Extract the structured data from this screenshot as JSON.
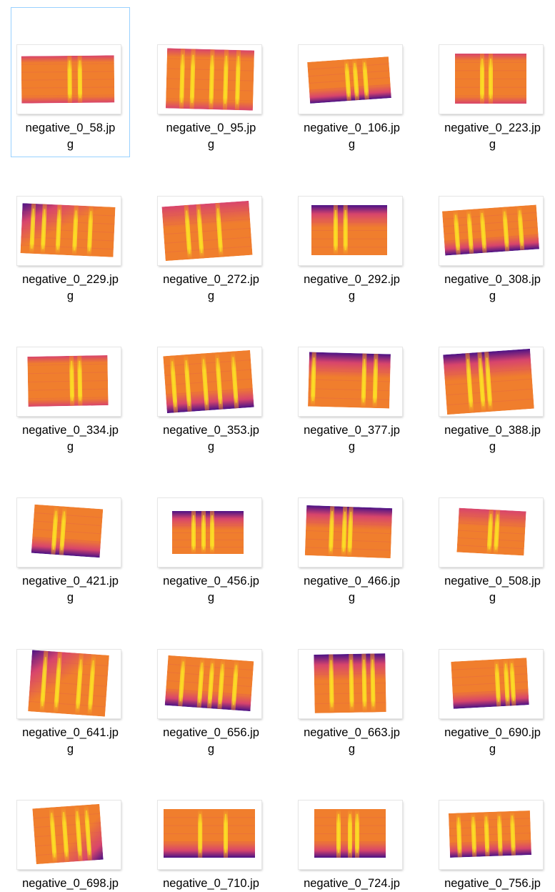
{
  "window": {
    "view": "Large icons"
  },
  "colors": {
    "selection_border": "#99d1ff",
    "colormap_dark": "#4a1286",
    "colormap_mid": "#d8456c",
    "colormap_orange": "#f07e2d",
    "colormap_bright": "#fde724"
  },
  "files": [
    {
      "name": "negative_0_58.jp",
      "name_wrap": "g",
      "selected": true,
      "icon": "spectrogram-thumbnail-icon"
    },
    {
      "name": "negative_0_95.jp",
      "name_wrap": "g",
      "selected": false,
      "icon": "spectrogram-thumbnail-icon"
    },
    {
      "name": "negative_0_106.jp",
      "name_wrap": "g",
      "selected": false,
      "icon": "spectrogram-thumbnail-icon"
    },
    {
      "name": "negative_0_223.jp",
      "name_wrap": "g",
      "selected": false,
      "icon": "spectrogram-thumbnail-icon"
    },
    {
      "name": "negative_0_229.jp",
      "name_wrap": "g",
      "selected": false,
      "icon": "spectrogram-thumbnail-icon"
    },
    {
      "name": "negative_0_272.jp",
      "name_wrap": "g",
      "selected": false,
      "icon": "spectrogram-thumbnail-icon"
    },
    {
      "name": "negative_0_292.jp",
      "name_wrap": "g",
      "selected": false,
      "icon": "spectrogram-thumbnail-icon"
    },
    {
      "name": "negative_0_308.jp",
      "name_wrap": "g",
      "selected": false,
      "icon": "spectrogram-thumbnail-icon"
    },
    {
      "name": "negative_0_334.jp",
      "name_wrap": "g",
      "selected": false,
      "icon": "spectrogram-thumbnail-icon"
    },
    {
      "name": "negative_0_353.jp",
      "name_wrap": "g",
      "selected": false,
      "icon": "spectrogram-thumbnail-icon"
    },
    {
      "name": "negative_0_377.jp",
      "name_wrap": "g",
      "selected": false,
      "icon": "spectrogram-thumbnail-icon"
    },
    {
      "name": "negative_0_388.jp",
      "name_wrap": "g",
      "selected": false,
      "icon": "spectrogram-thumbnail-icon"
    },
    {
      "name": "negative_0_421.jp",
      "name_wrap": "g",
      "selected": false,
      "icon": "spectrogram-thumbnail-icon"
    },
    {
      "name": "negative_0_456.jp",
      "name_wrap": "g",
      "selected": false,
      "icon": "spectrogram-thumbnail-icon"
    },
    {
      "name": "negative_0_466.jp",
      "name_wrap": "g",
      "selected": false,
      "icon": "spectrogram-thumbnail-icon"
    },
    {
      "name": "negative_0_508.jp",
      "name_wrap": "g",
      "selected": false,
      "icon": "spectrogram-thumbnail-icon"
    },
    {
      "name": "negative_0_641.jp",
      "name_wrap": "g",
      "selected": false,
      "icon": "spectrogram-thumbnail-icon"
    },
    {
      "name": "negative_0_656.jp",
      "name_wrap": "g",
      "selected": false,
      "icon": "spectrogram-thumbnail-icon"
    },
    {
      "name": "negative_0_663.jp",
      "name_wrap": "g",
      "selected": false,
      "icon": "spectrogram-thumbnail-icon"
    },
    {
      "name": "negative_0_690.jp",
      "name_wrap": "g",
      "selected": false,
      "icon": "spectrogram-thumbnail-icon"
    },
    {
      "name": "negative_0_698.jp",
      "name_wrap": "",
      "selected": false,
      "icon": "spectrogram-thumbnail-icon"
    },
    {
      "name": "negative_0_710.jp",
      "name_wrap": "",
      "selected": false,
      "icon": "spectrogram-thumbnail-icon"
    },
    {
      "name": "negative_0_724.jp",
      "name_wrap": "",
      "selected": false,
      "icon": "spectrogram-thumbnail-icon"
    },
    {
      "name": "negative_0_756.jp",
      "name_wrap": "",
      "selected": false,
      "icon": "spectrogram-thumbnail-icon"
    }
  ]
}
